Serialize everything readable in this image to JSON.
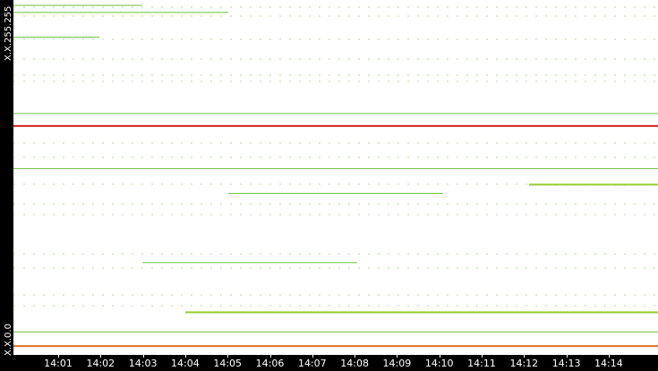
{
  "y_axis": {
    "top_label": "X.X.255.255",
    "bottom_label": "X.X.0.0"
  },
  "x_axis": {
    "ticks": [
      "14:01",
      "14:02",
      "14:03",
      "14:04",
      "14:05",
      "14:06",
      "14:07",
      "14:08",
      "14:09",
      "14:10",
      "14:11",
      "14:12",
      "14:13",
      "14:14"
    ]
  },
  "colors": {
    "background": "#ffffff",
    "axis": "#000000",
    "flow_normal": "#6cbf3a",
    "flow_medium": "#9acd32",
    "flow_high": "#e07020",
    "flow_alert": "#d62020"
  },
  "chart_data": {
    "type": "scatter",
    "title": "",
    "xlabel": "",
    "ylabel": "",
    "x_range": [
      "14:00",
      "14:15"
    ],
    "y_range": [
      0,
      255
    ],
    "series": [
      {
        "values": [
          {
            "y_frac": 0.985,
            "x_start": "14:00",
            "x_end": "14:03",
            "level": "normal"
          },
          {
            "y_frac": 0.965,
            "x_start": "14:00",
            "x_end": "14:05",
            "level": "normal"
          },
          {
            "y_frac": 0.895,
            "x_start": "14:00",
            "x_end": "14:02",
            "level": "normal"
          },
          {
            "y_frac": 0.68,
            "x_start": "14:00",
            "x_end": "14:15",
            "level": "normal"
          },
          {
            "y_frac": 0.645,
            "x_start": "14:00",
            "x_end": "14:15",
            "level": "alert"
          },
          {
            "y_frac": 0.525,
            "x_start": "14:00",
            "x_end": "14:15",
            "level": "normal"
          },
          {
            "y_frac": 0.455,
            "x_start": "14:05",
            "x_end": "14:10",
            "level": "normal"
          },
          {
            "y_frac": 0.48,
            "x_start": "14:12",
            "x_end": "14:15",
            "level": "medium"
          },
          {
            "y_frac": 0.26,
            "x_start": "14:03",
            "x_end": "14:08",
            "level": "normal"
          },
          {
            "y_frac": 0.12,
            "x_start": "14:04",
            "x_end": "14:15",
            "level": "medium"
          },
          {
            "y_frac": 0.065,
            "x_start": "14:00",
            "x_end": "14:15",
            "level": "normal"
          },
          {
            "y_frac": 0.025,
            "x_start": "14:00",
            "x_end": "14:15",
            "level": "high"
          }
        ]
      }
    ]
  }
}
